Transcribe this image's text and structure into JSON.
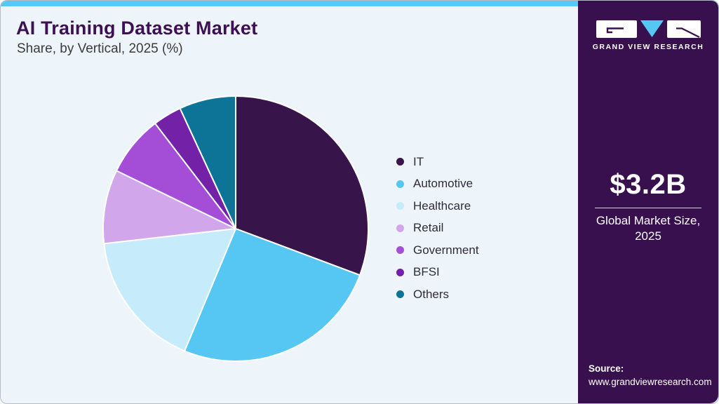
{
  "page": {
    "title": "AI Training Dataset Market",
    "subtitle": "Share, by Vertical, 2025 (%)"
  },
  "chart_data": {
    "type": "pie",
    "title": "AI Training Dataset Market Share, by Vertical, 2025 (%)",
    "unit": "%",
    "start_angle_deg": 0,
    "direction": "clockwise",
    "legend_position": "right",
    "labels_on_slices": false,
    "segments": [
      {
        "label": "IT",
        "value": 30.7,
        "color": "#37154a"
      },
      {
        "label": "Automotive",
        "value": 25.6,
        "color": "#56c7f3"
      },
      {
        "label": "Healthcare",
        "value": 16.9,
        "color": "#c6ebfb"
      },
      {
        "label": "Retail",
        "value": 9.0,
        "color": "#d2a6ea"
      },
      {
        "label": "Government",
        "value": 7.4,
        "color": "#a44ed8"
      },
      {
        "label": "BFSI",
        "value": 3.5,
        "color": "#7322a8"
      },
      {
        "label": "Others",
        "value": 6.9,
        "color": "#0e7497"
      }
    ]
  },
  "sidebar": {
    "brand_name": "GRAND VIEW RESEARCH",
    "market_size": "$3.2B",
    "market_size_caption": "Global Market Size, 2025",
    "source_label": "Source:",
    "source_url": "www.grandviewresearch.com"
  },
  "theme": {
    "top_bar_color": "#5ac8f5",
    "panel_background": "#edf5fa",
    "sidebar_background": "#38104e",
    "title_color": "#3d1053",
    "subtitle_color": "#3b3b3b",
    "legend_text_color": "#2f2b3c",
    "brand_accent_blue": "#56c7f3"
  }
}
